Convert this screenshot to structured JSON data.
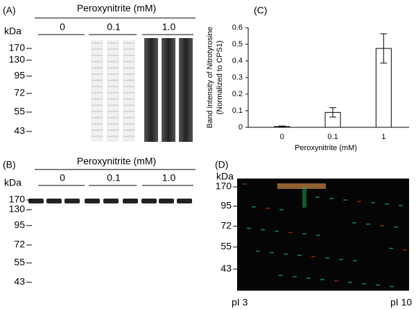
{
  "panels": {
    "a": {
      "letter": "(A)",
      "header": "Peroxynitrite (mM)",
      "groups": [
        "0",
        "0.1",
        "1.0"
      ],
      "unit": "kDa",
      "markers": [
        "170",
        "130",
        "95",
        "72",
        "55",
        "43"
      ]
    },
    "b": {
      "letter": "(B)",
      "header": "Peroxynitrite (mM)",
      "groups": [
        "0",
        "0.1",
        "1.0"
      ],
      "unit": "kDa",
      "markers": [
        "170",
        "130",
        "95",
        "72",
        "55",
        "43"
      ]
    },
    "d": {
      "letter": "(D)",
      "unit": "kDa",
      "markers": [
        "170",
        "95",
        "72",
        "55",
        "43"
      ],
      "left": "pI 3",
      "right": "pI 10"
    }
  },
  "chart_data": {
    "type": "bar",
    "letter": "(C)",
    "ylabel": [
      "Band Intensity of Nitrotyrosine",
      "(Normalized to CPS1)"
    ],
    "xlabel": "Peroxynitrite (mM)",
    "categories": [
      "0",
      "0.1",
      "1"
    ],
    "values": [
      0.005,
      0.09,
      0.475
    ],
    "errors": [
      0.003,
      0.028,
      0.088
    ],
    "color": "#ffffff",
    "ylim": [
      0,
      0.6
    ],
    "yticks": [
      0,
      0.1,
      0.2,
      0.3,
      0.4,
      0.5,
      0.6
    ]
  }
}
